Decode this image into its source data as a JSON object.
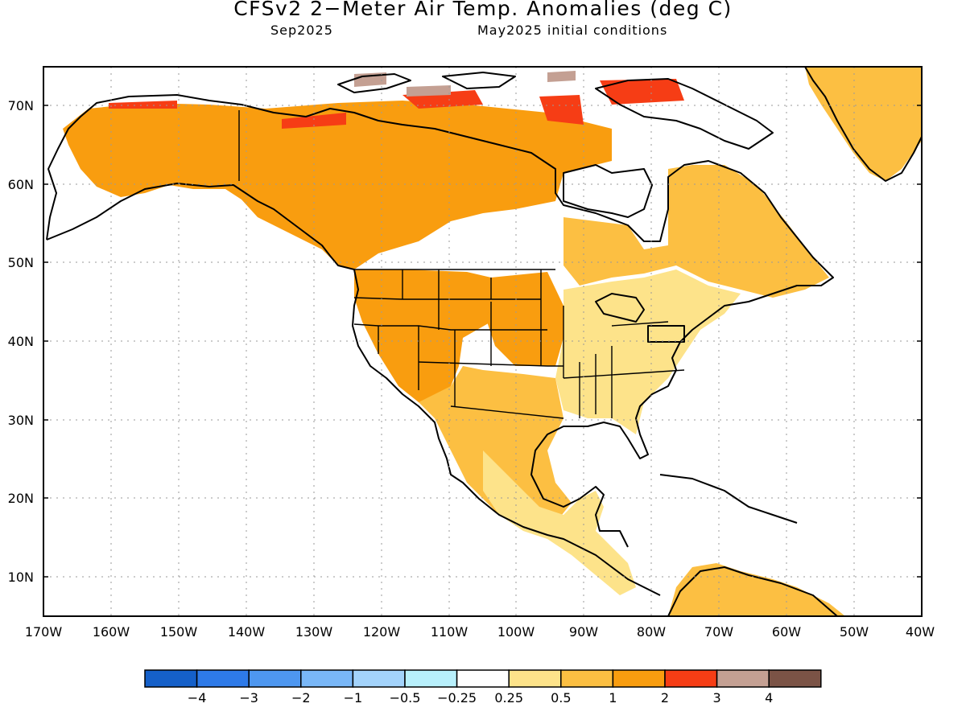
{
  "title": "CFSv2 2−Meter Air Temp. Anomalies (deg C)",
  "valid_month": "Sep2025",
  "init_conditions": "May2025 initial conditions",
  "lat_labels": [
    "70N",
    "60N",
    "50N",
    "40N",
    "30N",
    "20N",
    "10N"
  ],
  "lon_labels": [
    "170W",
    "160W",
    "150W",
    "140W",
    "130W",
    "120W",
    "110W",
    "100W",
    "90W",
    "80W",
    "70W",
    "60W",
    "50W",
    "40W"
  ],
  "colorbar": {
    "colors": [
      "#1560c9",
      "#2e7ae8",
      "#4e97f0",
      "#79b7f7",
      "#a3d3fb",
      "#b8f0fc",
      "#ffffff",
      "#fde38a",
      "#fcbf42",
      "#f99d0f",
      "#f63d15",
      "#c4a093",
      "#7b5346"
    ],
    "labels": [
      "−4",
      "−3",
      "−2",
      "−1",
      "−0.5",
      "−0.25",
      "0.25",
      "0.5",
      "1",
      "2",
      "3",
      "4"
    ]
  },
  "regions": [
    {
      "name": "alaska-canada-warm-zone",
      "category": "2",
      "color": "#f99d0f"
    },
    {
      "name": "western-us-warm-zone",
      "category": "2",
      "color": "#f99d0f"
    },
    {
      "name": "central-plains-warm-zone",
      "category": "2",
      "color": "#f99d0f"
    },
    {
      "name": "mexico-warm-zone",
      "category": "1",
      "color": "#fcbf42"
    },
    {
      "name": "eastern-canada-warm-zone",
      "category": "1",
      "color": "#fcbf42"
    },
    {
      "name": "eastern-us-warm-zone",
      "category": "0.5",
      "color": "#fde38a"
    },
    {
      "name": "central-america-warm-zone",
      "category": "0.5",
      "color": "#fde38a"
    },
    {
      "name": "greenland-warm-zone",
      "category": "1",
      "color": "#fcbf42"
    },
    {
      "name": "south-america-warm-zone",
      "category": "1",
      "color": "#fcbf42"
    },
    {
      "name": "arctic-coast-hot-spots",
      "category": "3",
      "color": "#f63d15"
    },
    {
      "name": "arctic-islands-hot-spots",
      "category": "4",
      "color": "#c4a093"
    }
  ]
}
